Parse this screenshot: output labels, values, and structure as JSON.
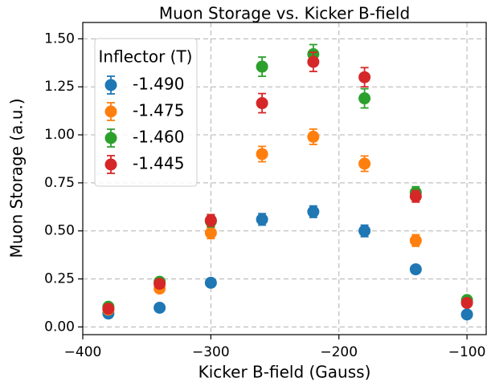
{
  "chart_data": {
    "type": "scatter",
    "title": "Muon Storage vs. Kicker B-field",
    "x_label": "Kicker B-field (Gauss)",
    "y_label": "Muon Storage (a.u.)",
    "x": [
      -380,
      -340,
      -300,
      -260,
      -220,
      -180,
      -140,
      -100
    ],
    "series": [
      {
        "name": "-1.490",
        "color": "#1f77b4",
        "values": [
          0.07,
          0.1,
          0.23,
          0.56,
          0.6,
          0.5,
          0.3,
          0.065
        ],
        "errors": [
          0.01,
          0.01,
          0.01,
          0.03,
          0.03,
          0.03,
          0.015,
          0.01
        ]
      },
      {
        "name": "-1.475",
        "color": "#ff7f0e",
        "values": [
          0.09,
          0.2,
          0.49,
          0.9,
          0.99,
          0.85,
          0.45,
          0.13
        ],
        "errors": [
          0.01,
          0.02,
          0.03,
          0.04,
          0.04,
          0.04,
          0.03,
          0.01
        ]
      },
      {
        "name": "-1.460",
        "color": "#2ca02c",
        "values": [
          0.105,
          0.235,
          0.55,
          1.355,
          1.42,
          1.19,
          0.7,
          0.14
        ],
        "errors": [
          0.01,
          0.02,
          0.03,
          0.05,
          0.05,
          0.05,
          0.03,
          0.01
        ]
      },
      {
        "name": "-1.445",
        "color": "#d62728",
        "values": [
          0.095,
          0.225,
          0.555,
          1.165,
          1.38,
          1.3,
          0.68,
          0.125
        ],
        "errors": [
          0.01,
          0.02,
          0.03,
          0.05,
          0.05,
          0.05,
          0.03,
          0.01
        ]
      }
    ],
    "legend_title": "Inflector (T)",
    "legend": "upper left",
    "grid": true,
    "xlim": [
      -400,
      -85
    ],
    "ylim": [
      -0.04,
      1.585
    ],
    "xticks": [
      {
        "value": -400,
        "label": "−400"
      },
      {
        "value": -300,
        "label": "−300"
      },
      {
        "value": -200,
        "label": "−200"
      },
      {
        "value": -100,
        "label": "−100"
      }
    ],
    "yticks": [
      {
        "value": 0,
        "label": "0.00"
      },
      {
        "value": 0.25,
        "label": "0.25"
      },
      {
        "value": 0.5,
        "label": "0.50"
      },
      {
        "value": 0.75,
        "label": "0.75"
      },
      {
        "value": 1.0,
        "label": "1.00"
      },
      {
        "value": 1.25,
        "label": "1.25"
      },
      {
        "value": 1.5,
        "label": "1.50"
      }
    ]
  }
}
